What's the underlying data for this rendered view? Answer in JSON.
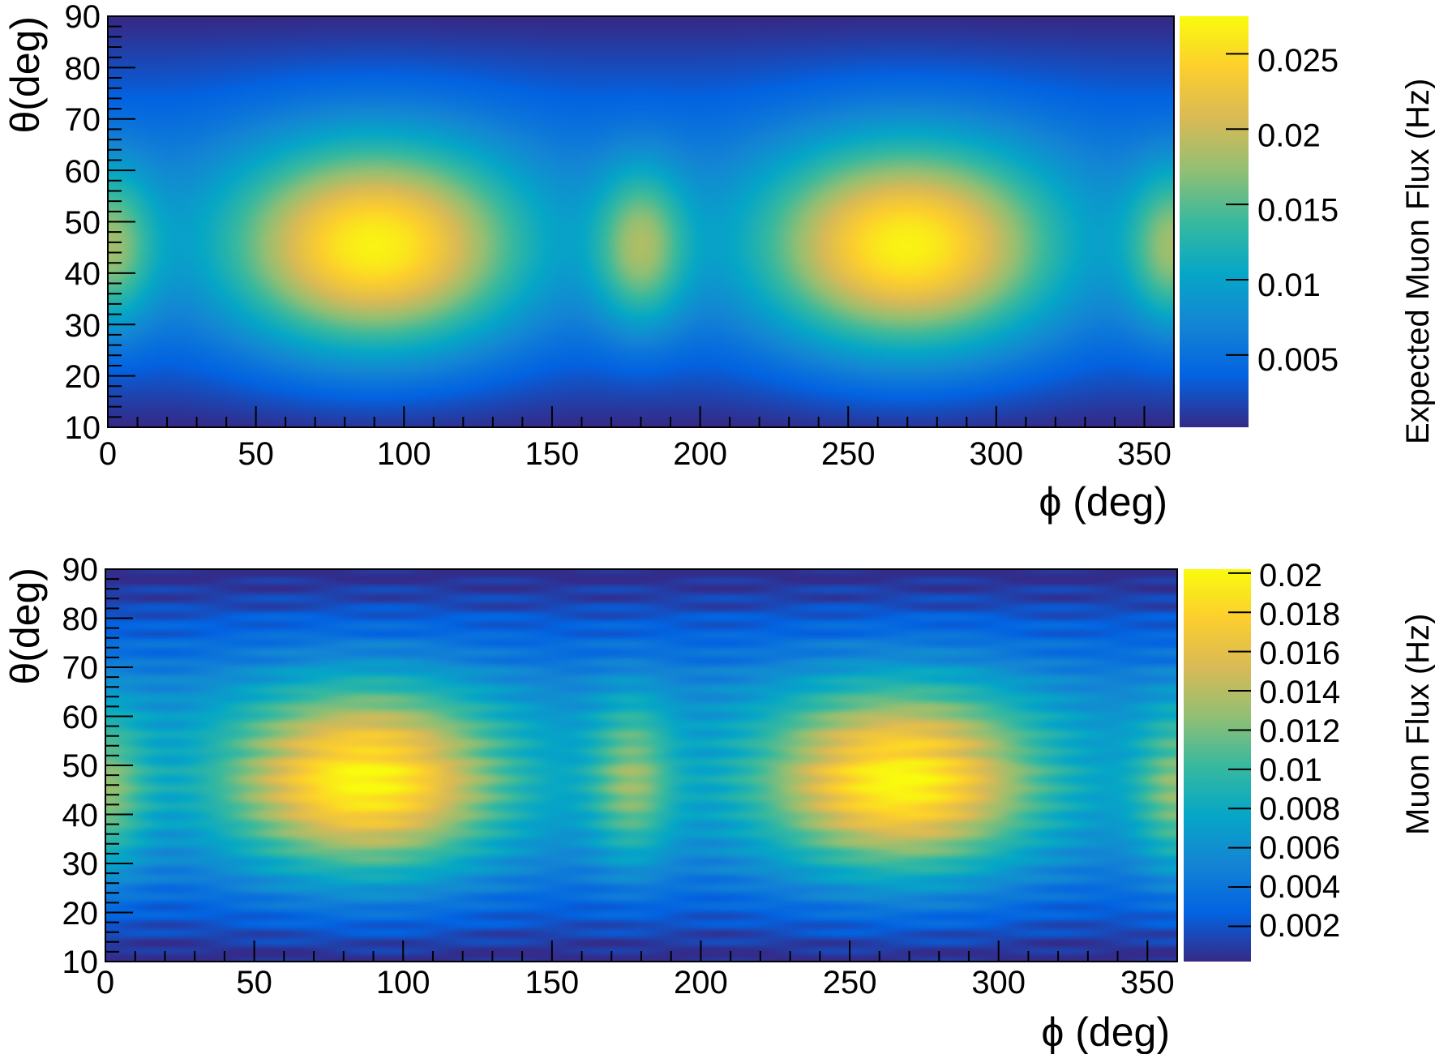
{
  "colors": {
    "viridis_stops": [
      "#352a87",
      "#0363e1",
      "#1485d4",
      "#06a7c6",
      "#38b99e",
      "#92bf73",
      "#d9ba56",
      "#fcce2e",
      "#f9fb0e"
    ],
    "frame": "#000000",
    "background": "#ffffff"
  },
  "chart_data": [
    {
      "type": "heatmap",
      "name": "expected",
      "xlabel": "ϕ (deg)",
      "ylabel": "θ(deg)",
      "zlabel": "Expected Muon Flux (Hz)",
      "xlim": [
        0,
        360
      ],
      "ylim": [
        10,
        90
      ],
      "zlim": [
        0.0002,
        0.0275
      ],
      "x_ticks": [
        0,
        50,
        100,
        150,
        200,
        250,
        300,
        350
      ],
      "x_tick_labels": [
        "0",
        "50",
        "100",
        "150",
        "200",
        "250",
        "300",
        "350"
      ],
      "y_ticks": [
        10,
        20,
        30,
        40,
        50,
        60,
        70,
        80,
        90
      ],
      "y_tick_labels": [
        "10",
        "20",
        "30",
        "40",
        "50",
        "60",
        "70",
        "80",
        "90"
      ],
      "z_ticks": [
        0.005,
        0.01,
        0.015,
        0.02,
        0.025
      ],
      "z_tick_labels": [
        "0.005",
        "0.01",
        "0.015",
        "0.02",
        "0.025"
      ],
      "peaks": [
        {
          "phi": 90,
          "theta": 45,
          "flux": 0.0275
        },
        {
          "phi": 270,
          "theta": 45,
          "flux": 0.0275
        },
        {
          "phi": 180,
          "theta": 45,
          "flux": 0.018
        },
        {
          "phi": 0,
          "theta": 45,
          "flux": 0.018
        },
        {
          "phi": 360,
          "theta": 45,
          "flux": 0.018
        }
      ]
    },
    {
      "type": "heatmap",
      "name": "measured",
      "xlabel": "ϕ (deg)",
      "ylabel": "θ(deg)",
      "zlabel": "Muon Flux (Hz)",
      "xlim": [
        0,
        360
      ],
      "ylim": [
        10,
        90
      ],
      "zlim": [
        0.0002,
        0.0202
      ],
      "x_ticks": [
        0,
        50,
        100,
        150,
        200,
        250,
        300,
        350
      ],
      "x_tick_labels": [
        "0",
        "50",
        "100",
        "150",
        "200",
        "250",
        "300",
        "350"
      ],
      "y_ticks": [
        10,
        20,
        30,
        40,
        50,
        60,
        70,
        80,
        90
      ],
      "y_tick_labels": [
        "10",
        "20",
        "30",
        "40",
        "50",
        "60",
        "70",
        "80",
        "90"
      ],
      "z_ticks": [
        0.002,
        0.004,
        0.006,
        0.008,
        0.01,
        0.012,
        0.014,
        0.016,
        0.018,
        0.02
      ],
      "z_tick_labels": [
        "0.002",
        "0.004",
        "0.006",
        "0.008",
        "0.01",
        "0.012",
        "0.014",
        "0.016",
        "0.018",
        "0.02"
      ],
      "peaks": [
        {
          "phi": 87,
          "theta": 47,
          "flux": 0.0202
        },
        {
          "phi": 267,
          "theta": 47,
          "flux": 0.0202
        },
        {
          "phi": 177,
          "theta": 47,
          "flux": 0.0125
        },
        {
          "phi": 0,
          "theta": 45,
          "flux": 0.0125
        },
        {
          "phi": 360,
          "theta": 45,
          "flux": 0.0125
        }
      ]
    }
  ]
}
